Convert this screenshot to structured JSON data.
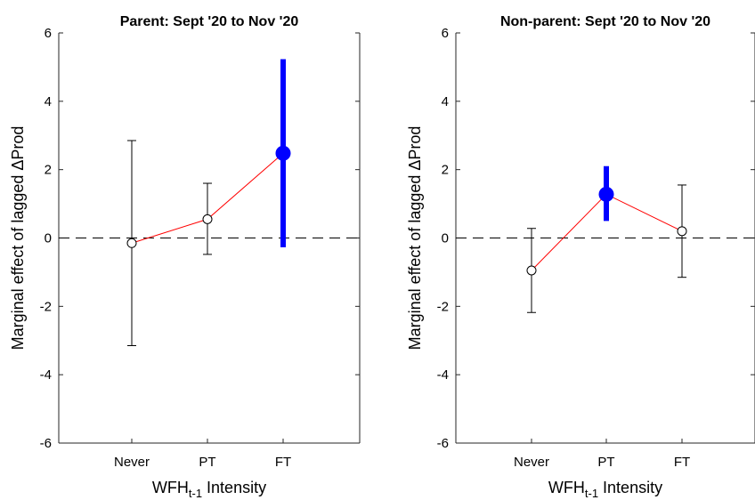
{
  "chart_data": [
    {
      "type": "scatter",
      "title": "Parent: Sept '20 to Nov '20",
      "categories": [
        "Never",
        "PT",
        "FT"
      ],
      "ylim": [
        -6,
        6
      ],
      "yticks": [
        "-6",
        "-4",
        "-2",
        "0",
        "2",
        "4",
        "6"
      ],
      "xlabel": {
        "main": "WFH",
        "sub": "t-1",
        "suffix": " Intensity"
      },
      "ylabel": "Marginal effect of lagged  ΔProd",
      "reference_line": 0,
      "points": [
        {
          "category": "Never",
          "value": -0.15,
          "ci": [
            -3.15,
            2.85
          ],
          "significant": false
        },
        {
          "category": "PT",
          "value": 0.55,
          "ci": [
            -0.48,
            1.6
          ],
          "significant": false
        },
        {
          "category": "FT",
          "value": 2.48,
          "ci": [
            -0.22,
            5.18
          ],
          "significant": true
        }
      ],
      "colors": {
        "connector": "#ff0000",
        "significant": "#0000ff",
        "insignificant": "#000000"
      }
    },
    {
      "type": "scatter",
      "title": "Non-parent: Sept '20 to Nov '20",
      "categories": [
        "Never",
        "PT",
        "FT"
      ],
      "ylim": [
        -6,
        6
      ],
      "yticks": [
        "-6",
        "-4",
        "-2",
        "0",
        "2",
        "4",
        "6"
      ],
      "xlabel": {
        "main": "WFH",
        "sub": "t-1",
        "suffix": " Intensity"
      },
      "ylabel": "Marginal effect of lagged  ΔProd",
      "reference_line": 0,
      "points": [
        {
          "category": "Never",
          "value": -0.95,
          "ci": [
            -2.18,
            0.28
          ],
          "significant": false
        },
        {
          "category": "PT",
          "value": 1.28,
          "ci": [
            0.55,
            2.05
          ],
          "significant": true
        },
        {
          "category": "FT",
          "value": 0.2,
          "ci": [
            -1.15,
            1.55
          ],
          "significant": false
        }
      ],
      "colors": {
        "connector": "#ff0000",
        "significant": "#0000ff",
        "insignificant": "#000000"
      }
    }
  ]
}
